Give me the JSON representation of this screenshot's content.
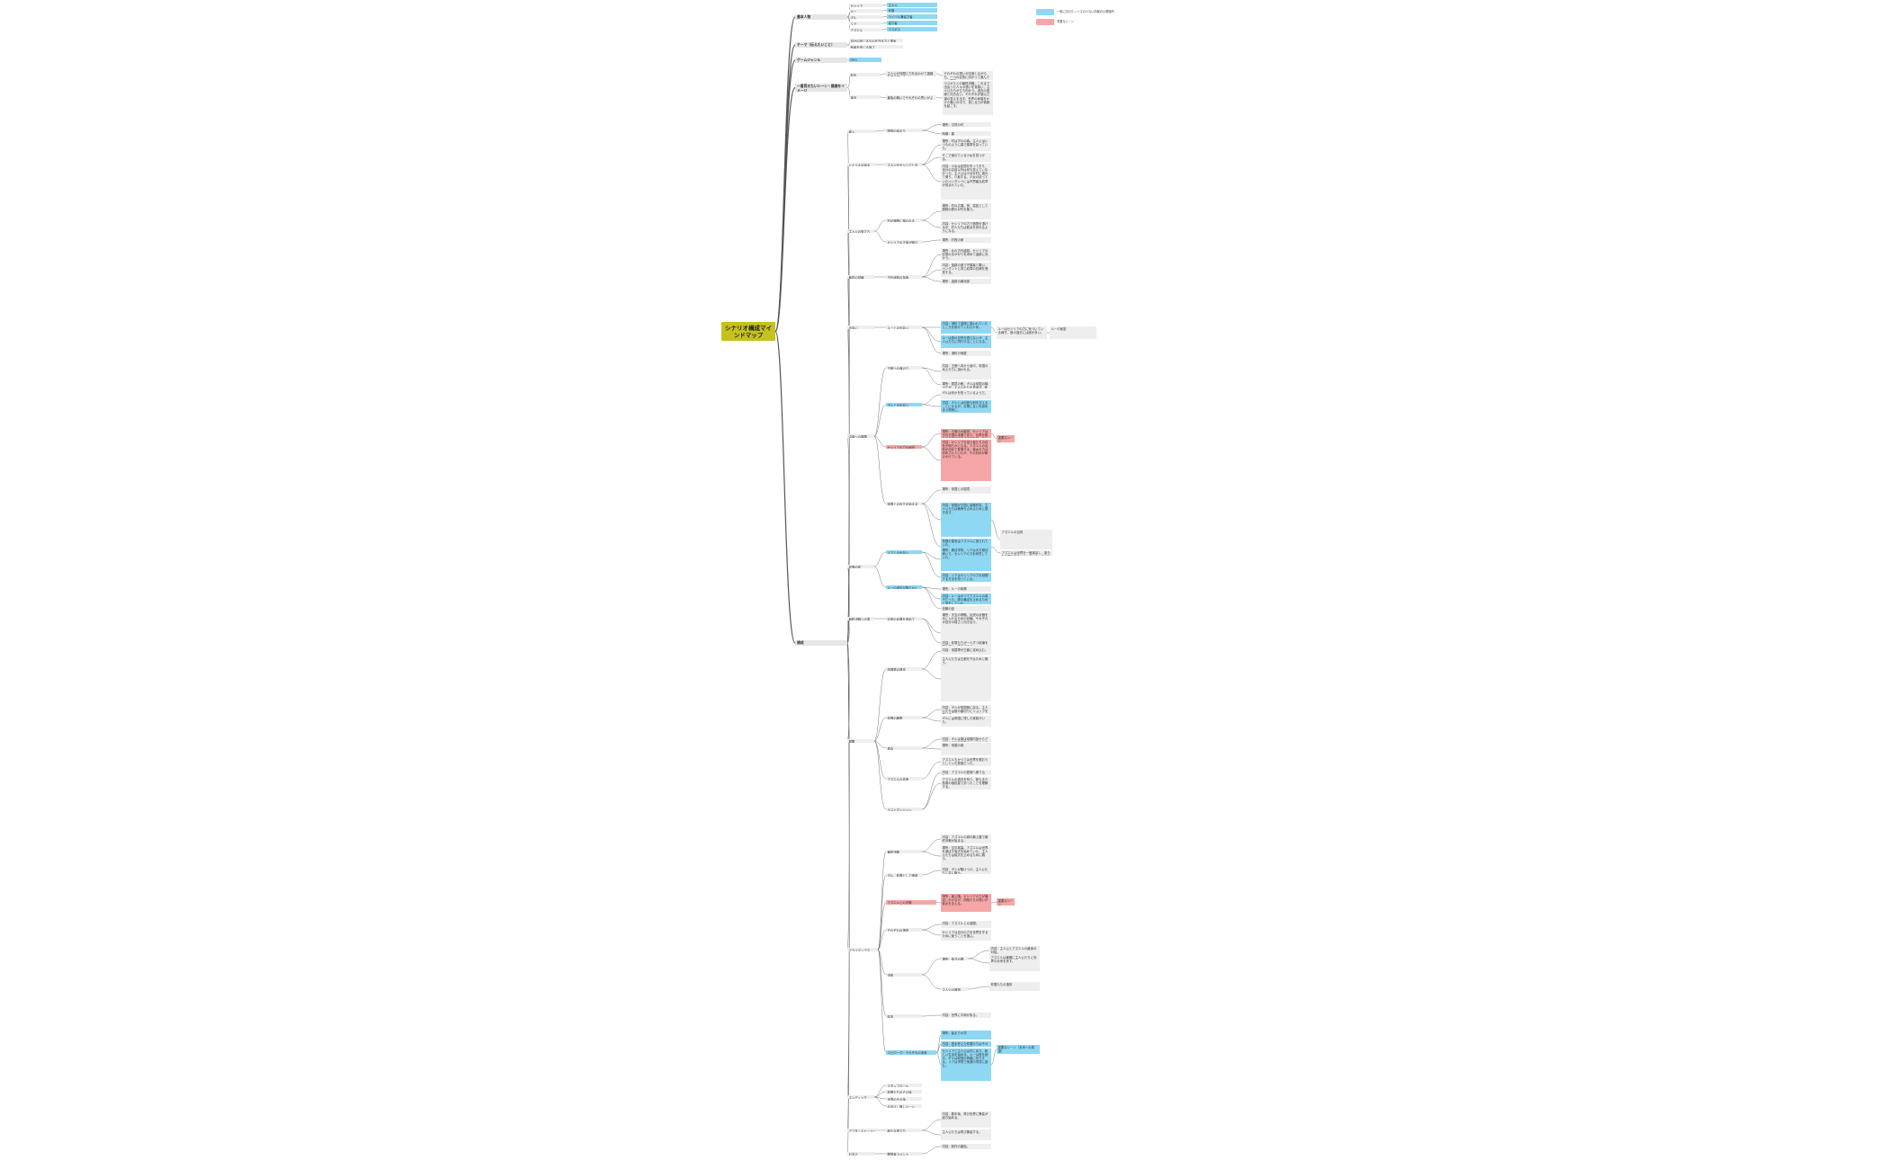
{
  "root": {
    "label": "シナリオ構成マインドマップ"
  },
  "legend": [
    {
      "label": "一般に向けたノイズの少ない情報の公開場所",
      "color": "#8fd8f4"
    },
    {
      "label": "重要なシーン",
      "color": "#f6a6a6"
    }
  ],
  "colors": {
    "root": "#c5c11f",
    "blue": "#8fd8f4",
    "red": "#f6a6a6",
    "node": "#eeeeee",
    "line": "#555555"
  },
  "nodes": [
    {
      "id": "m1",
      "label": "基本人物",
      "style": "main"
    },
    {
      "id": "m1a",
      "label": "セシリア",
      "style": "sub"
    },
    {
      "id": "m1b",
      "label": "ルー",
      "style": "sub"
    },
    {
      "id": "m1c",
      "label": "ギル",
      "style": "sub"
    },
    {
      "id": "m1d",
      "label": "リア",
      "style": "sub"
    },
    {
      "id": "m1e",
      "label": "アズエル",
      "style": "sub"
    },
    {
      "id": "m1a1",
      "label": "主人公",
      "style": "blue"
    },
    {
      "id": "m1b1",
      "label": "仲間",
      "style": "blue"
    },
    {
      "id": "m1c1",
      "label": "ライバル兼協力者",
      "style": "blue"
    },
    {
      "id": "m1d1",
      "label": "協力者",
      "style": "blue"
    },
    {
      "id": "m1e1",
      "label": "ラスボス",
      "style": "blue"
    },
    {
      "id": "m2",
      "label": "テーマ（伝えたいこと）",
      "style": "main"
    },
    {
      "id": "m2a",
      "label": "自分の信じるものを守る力と勇気",
      "style": "sub"
    },
    {
      "id": "m2b",
      "label": "他者を信じる強さ",
      "style": "sub"
    },
    {
      "id": "m3",
      "label": "ゲームジャンル",
      "style": "main"
    },
    {
      "id": "m3a",
      "label": "RPG",
      "style": "blue"
    },
    {
      "id": "m4",
      "label": "一番見せたいシーン・展開をイメージ",
      "style": "main"
    },
    {
      "id": "m4a",
      "label": "前半",
      "style": "sub"
    },
    {
      "id": "m4b",
      "label": "後半",
      "style": "sub"
    },
    {
      "id": "m4a1",
      "label": "主人公が仲間と力を合わせて困難を乗り越える",
      "style": "sub"
    },
    {
      "id": "m4b1",
      "label": "最後の戦いでそれぞれの思いがぶつかる",
      "style": "sub"
    },
    {
      "id": "m4a1x",
      "label": "それぞれの想いが交差しながらも、一つの目的に向かって進んでいく場面",
      "style": "leaf"
    },
    {
      "id": "m4b1x",
      "label": "ラスボスとの最終決戦。これまで出会った人々の想いを背負い、主人公たちが立ち向かう。過去の因縁と向き合い、それぞれが選んだ道の答えを出す。世界の命運をかけた戦いの中で、信じる力が奇跡を起こす。",
      "style": "leaf"
    },
    {
      "id": "m5",
      "label": "構成",
      "style": "main"
    },
    {
      "id": "s1",
      "label": "導入",
      "style": "sub"
    },
    {
      "id": "s1a",
      "label": "物語の始まり",
      "style": "sub"
    },
    {
      "id": "s1x",
      "label": "場所：辺境の村",
      "style": "leaf"
    },
    {
      "id": "s1y",
      "label": "時期：春",
      "style": "leaf"
    },
    {
      "id": "s2",
      "label": "シナリオの始まり",
      "style": "sub"
    },
    {
      "id": "s2a",
      "label": "主人公がセシリアと出会う",
      "style": "sub"
    },
    {
      "id": "s2x",
      "label": "場所：村はずれの森。主人公はいつものように森で薬草を採っていた。",
      "style": "leaf"
    },
    {
      "id": "s2y",
      "label": "そこで倒れている少女を見つける。",
      "style": "leaf"
    },
    {
      "id": "s2z",
      "label": "内容：少女は記憶を失っており、自分の名前以外は何も覚えていなかった。主人公は少女を村に連れて帰り、介抱する。少女の持っていたペンダントには不思議な紋章が刻まれていた。",
      "style": "leaf"
    },
    {
      "id": "s3",
      "label": "主人公の旅立ち",
      "style": "sub"
    },
    {
      "id": "s3a",
      "label": "村が魔物に襲われる",
      "style": "sub"
    },
    {
      "id": "s3b",
      "label": "セシリアの正体が明らかに",
      "style": "sub"
    },
    {
      "id": "s3x",
      "label": "場所：村の広場。夜、突如として魔物の群れが村を襲う。",
      "style": "leaf"
    },
    {
      "id": "s3y",
      "label": "内容：セシリアの力で魔物を退けるが、村人たちは彼女を恐れるようになる。",
      "style": "leaf"
    },
    {
      "id": "s3z",
      "label": "場所：村長の家",
      "style": "leaf"
    },
    {
      "id": "s4",
      "label": "最初の試練",
      "style": "sub"
    },
    {
      "id": "s4a",
      "label": "古代遺跡の探索",
      "style": "sub"
    },
    {
      "id": "s4x",
      "label": "場所：北の古代遺跡。セシリアの記憶の手がかりを求めて遺跡に向かう。",
      "style": "leaf"
    },
    {
      "id": "s4y",
      "label": "内容：遺跡の奥で守護者と戦い、ペンダントと同じ紋章の石碑を発見する。",
      "style": "leaf"
    },
    {
      "id": "s4z",
      "label": "場所：遺跡の最深部",
      "style": "leaf"
    },
    {
      "id": "s5",
      "label": "出会い",
      "style": "sub"
    },
    {
      "id": "s5a",
      "label": "ルーとの出会い",
      "style": "sub"
    },
    {
      "id": "s5x",
      "label": "内容：港町で盗賊に襲われていたところを助けてくれた少年。",
      "style": "blue"
    },
    {
      "id": "s5y",
      "label": "ルーは旅の目的を語らないが、主人公たちに同行することになる。",
      "style": "blue"
    },
    {
      "id": "s5z",
      "label": "場所：港町の宿屋",
      "style": "leaf"
    },
    {
      "id": "s5n",
      "label": "ルーはセシリアの力に気づいている様子。彼の過去には謎が多い。",
      "style": "leaf"
    },
    {
      "id": "s5m",
      "label": "ルーの秘密",
      "style": "leaf"
    },
    {
      "id": "s6",
      "label": "中盤への展開",
      "style": "sub"
    },
    {
      "id": "s6a",
      "label": "王都への道のり",
      "style": "sub"
    },
    {
      "id": "s6b",
      "label": "ギルとの出会い",
      "style": "blue"
    },
    {
      "id": "s6c",
      "label": "セシリアの力の秘密",
      "style": "red"
    },
    {
      "id": "s6d",
      "label": "帝国との対立が始まる",
      "style": "sub"
    },
    {
      "id": "s6x",
      "label": "内容：王都へ向かう途中、帝国の兵士たちに追われる。",
      "style": "leaf"
    },
    {
      "id": "s6y",
      "label": "場所：国境の砦。ギルは帝国の騎士だが、主人公たちを見逃す。彼の真意は不明。",
      "style": "leaf"
    },
    {
      "id": "s6z",
      "label": "ギルは何かを知っているようだ。",
      "style": "leaf"
    },
    {
      "id": "s6w",
      "label": "内容：ギルとは何度も剣を交えることになるが、次第に互いを認め合う関係に。",
      "style": "blue"
    },
    {
      "id": "s6v",
      "label": "場所：王都の大聖堂。セシリアは古代王国の末裔であり、世界を救う力と滅ぼす力の両方を持っていることが判明する。",
      "style": "red"
    },
    {
      "id": "s6u",
      "label": "内容：セシリアを狙う者たちの存在が明らかになる。アズエルの名前が初めて登場する。彼女の力は封印されていたが、その封印が解けかけている。",
      "style": "red"
    },
    {
      "id": "s6t",
      "label": "重要なシーン",
      "style": "red"
    },
    {
      "id": "s6s",
      "label": "場所：帝国との国境",
      "style": "leaf"
    },
    {
      "id": "s6r",
      "label": "内容：帝国が王国に宣戦布告。主人公たちは戦争を止めるために動き出す。",
      "style": "blue"
    },
    {
      "id": "s6q",
      "label": "帝国の皇帝はアズエルに操られていた。",
      "style": "blue"
    },
    {
      "id": "s6p",
      "label": "アズエルの目的",
      "style": "leaf"
    },
    {
      "id": "s6o",
      "label": "アズエルは世界を一度滅ぼし、新たな世界を創ろうとしている。そのためにセシリアの力が必要だった。",
      "style": "leaf"
    },
    {
      "id": "s7",
      "label": "仲間の絆",
      "style": "sub"
    },
    {
      "id": "s7a",
      "label": "リアとの出会い",
      "style": "blue"
    },
    {
      "id": "s7b",
      "label": "ルーの過去が明らかに",
      "style": "blue"
    },
    {
      "id": "s7x",
      "label": "場所：魔法学院。リアは天才魔法使いで、セシリアの力を研究していた。",
      "style": "blue"
    },
    {
      "id": "s7y",
      "label": "内容：リアはセシリアの力を制御する方法を知っている。",
      "style": "blue"
    },
    {
      "id": "s7z",
      "label": "場所：ルーの故郷",
      "style": "leaf"
    },
    {
      "id": "s7w",
      "label": "内容：ルーはかつてアズエルの弟子だった。師の暴走を止めるために旅をしていた。",
      "style": "blue"
    },
    {
      "id": "s7v",
      "label": "信頼の証",
      "style": "leaf"
    },
    {
      "id": "s8",
      "label": "最終決戦への準備",
      "style": "sub"
    },
    {
      "id": "s8a",
      "label": "伝説の武器を求めて",
      "style": "sub"
    },
    {
      "id": "s8x",
      "label": "場所：天空の神殿。伝説の武器を手に入れるための試練。それぞれが自分の弱さと向き合う。",
      "style": "leaf"
    },
    {
      "id": "s8y",
      "label": "内容：仲間たちが一人ずつ試練を乗り越え、絆を深める。",
      "style": "leaf"
    },
    {
      "id": "s9",
      "label": "展開",
      "style": "sub"
    },
    {
      "id": "s9a",
      "label": "帝国軍の侵攻",
      "style": "sub"
    },
    {
      "id": "s9b",
      "label": "仲間の離脱",
      "style": "sub"
    },
    {
      "id": "s9c",
      "label": "再会",
      "style": "sub"
    },
    {
      "id": "s9d",
      "label": "アズエルの真実",
      "style": "sub"
    },
    {
      "id": "s9e",
      "label": "ラストダンジョン",
      "style": "sub"
    },
    {
      "id": "s9x",
      "label": "内容：帝国軍が王都に攻め込む。",
      "style": "leaf"
    },
    {
      "id": "s9y",
      "label": "主人公たちは王都を守るために戦う。",
      "style": "leaf"
    },
    {
      "id": "s9z",
      "label": "内容：ギルが帝国側に戻る。主人公たちは彼の裏切りにショックを受ける。",
      "style": "leaf"
    },
    {
      "id": "s9w",
      "label": "ギルには帝国に残した家族がいた。",
      "style": "leaf"
    },
    {
      "id": "s9v",
      "label": "内容：ギルは実は帝国内部からアズエルの計画を阻止しようとしていた。",
      "style": "leaf"
    },
    {
      "id": "s9u",
      "label": "場所：帝国の城",
      "style": "leaf"
    },
    {
      "id": "s9t",
      "label": "アズエルもかつては世界を救おうとしていた英雄だった。",
      "style": "leaf"
    },
    {
      "id": "s9s",
      "label": "内容：アズエルの居城へ乗り込む。",
      "style": "leaf"
    },
    {
      "id": "s9r",
      "label": "アズエルの過去を知り、彼もまた悲劇の犠牲者であったことを理解する。",
      "style": "leaf"
    },
    {
      "id": "s10",
      "label": "クライマックス",
      "style": "sub"
    },
    {
      "id": "s10a",
      "label": "最終決戦",
      "style": "sub"
    },
    {
      "id": "s10b",
      "label": "ギル、仲間として帰還",
      "style": "sub"
    },
    {
      "id": "s10c",
      "label": "アズエルとの決戦",
      "style": "red"
    },
    {
      "id": "s10d",
      "label": "それぞれの選択",
      "style": "sub"
    },
    {
      "id": "s10e",
      "label": "決着",
      "style": "sub"
    },
    {
      "id": "s10f",
      "label": "結末",
      "style": "sub"
    },
    {
      "id": "s10g",
      "label": "エピローグ：それぞれの未来",
      "style": "blue"
    },
    {
      "id": "s10x",
      "label": "内容：アズエルの城の最上階で最終決戦が始まる。",
      "style": "leaf"
    },
    {
      "id": "s10y",
      "label": "場所：空中城塞。アズエルは世界を滅ぼす儀式を始めていた。主人公たちは儀式を止めるために戦う。",
      "style": "leaf"
    },
    {
      "id": "s10z",
      "label": "内容：ギルが駆けつけ、主人公たちと共に戦う。",
      "style": "leaf"
    },
    {
      "id": "s10w",
      "label": "場所：最上階。セシリアの力が暴走しかけるが、仲間たちの想いが彼女を支える。",
      "style": "red"
    },
    {
      "id": "s10v",
      "label": "重要なシーン",
      "style": "red"
    },
    {
      "id": "s10u",
      "label": "内容：アズエルとの激闘。",
      "style": "leaf"
    },
    {
      "id": "s10t",
      "label": "セシリアは自分の力を世界を守るために使うことを選ぶ。",
      "style": "leaf"
    },
    {
      "id": "s10s",
      "label": "場所：儀式の間",
      "style": "leaf"
    },
    {
      "id": "s10r",
      "label": "内容：主人公とアズエルの最後の対話。",
      "style": "leaf"
    },
    {
      "id": "s10q",
      "label": "アズエルは最期に主人公たちに世界の未来を託す。",
      "style": "leaf"
    },
    {
      "id": "s10p",
      "label": "主人公の選択",
      "style": "leaf"
    },
    {
      "id": "s10o",
      "label": "仲間たちの選択",
      "style": "leaf"
    },
    {
      "id": "s10n",
      "label": "内容：世界に平和が戻る。",
      "style": "leaf"
    },
    {
      "id": "s10m",
      "label": "場所：始まりの村",
      "style": "blue"
    },
    {
      "id": "s10l",
      "label": "内容：旅を終えた仲間たちはそれぞれの道を歩み始める。",
      "style": "blue"
    },
    {
      "id": "s10k",
      "label": "セシリアと主人公は村に戻り、新しい生活を始める。ルーは旅を続け、ギルは帝国の再建に尽力する。リアは学院で後進の育成に励む。",
      "style": "blue"
    },
    {
      "id": "s10j",
      "label": "重要なシーン（未来への希望）",
      "style": "blue"
    },
    {
      "id": "s11",
      "label": "エンディング",
      "style": "sub"
    },
    {
      "id": "s11a",
      "label": "スタッフロール",
      "style": "sub"
    },
    {
      "id": "s11b",
      "label": "仲間たちのその後",
      "style": "sub"
    },
    {
      "id": "s11c",
      "label": "世界のその後",
      "style": "sub"
    },
    {
      "id": "s11d",
      "label": "おまけ：隠しシーン",
      "style": "sub"
    },
    {
      "id": "s12",
      "label": "アフターストーリー",
      "style": "sub"
    },
    {
      "id": "s12a",
      "label": "新たな旅立ち",
      "style": "sub"
    },
    {
      "id": "s12x",
      "label": "内容：数年後、再び世界に異変が起き始める。",
      "style": "leaf"
    },
    {
      "id": "s12y",
      "label": "主人公たちは再び集結する。",
      "style": "leaf"
    },
    {
      "id": "s13",
      "label": "おまけ",
      "style": "sub"
    },
    {
      "id": "s13a",
      "label": "開発者コメント",
      "style": "sub"
    },
    {
      "id": "s13x",
      "label": "内容：制作の裏話。",
      "style": "leaf"
    }
  ]
}
